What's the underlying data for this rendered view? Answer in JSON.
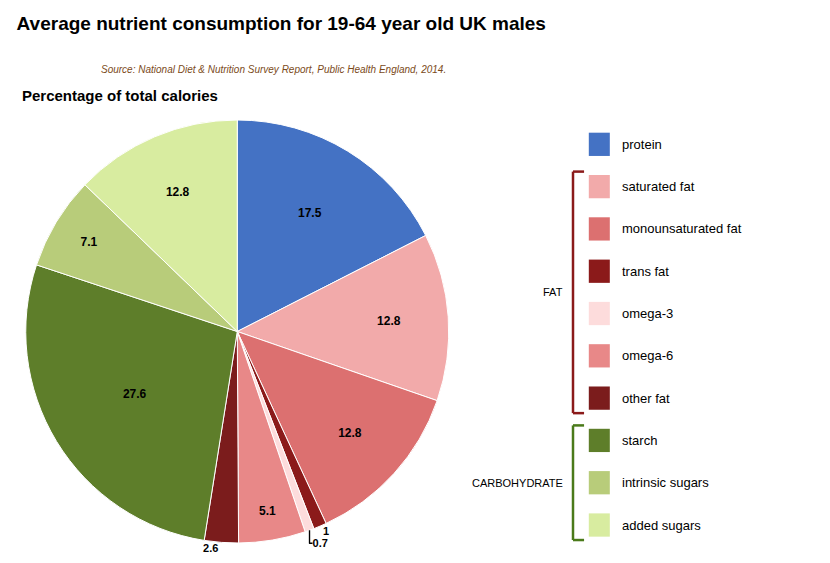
{
  "chart_data": {
    "type": "pie",
    "title": "Average nutrient consumption for 19-64 year old UK males",
    "subtitle": "Source: National Diet & Nutrition Survey Report, Public Health England, 2014.",
    "annotations": [
      "Percentage of total calories"
    ],
    "categories": [
      "protein",
      "saturated fat",
      "monounsaturated fat",
      "trans fat",
      "omega-3",
      "omega-6",
      "other fat",
      "starch",
      "intrinsic sugars",
      "added sugars"
    ],
    "values": [
      17.5,
      12.8,
      12.8,
      1.0,
      0.7,
      5.1,
      2.6,
      27.6,
      7.1,
      12.8
    ],
    "colors": [
      "#4472C4",
      "#F2AAAA",
      "#DC7070",
      "#8B1A1A",
      "#FDDCDC",
      "#E88888",
      "#7B1C1C",
      "#5E7E2A",
      "#B8CC7A",
      "#D8ECA0"
    ],
    "data_labels": true,
    "legend": "right",
    "groups": [
      {
        "label": "FAT",
        "color": "#8B1A1A",
        "members": [
          "saturated fat",
          "monounsaturated fat",
          "trans fat",
          "omega-3",
          "omega-6",
          "other fat"
        ]
      },
      {
        "label": "CARBOHYDRATE",
        "color": "#4A7A1A",
        "members": [
          "starch",
          "intrinsic sugars",
          "added sugars"
        ]
      }
    ]
  }
}
